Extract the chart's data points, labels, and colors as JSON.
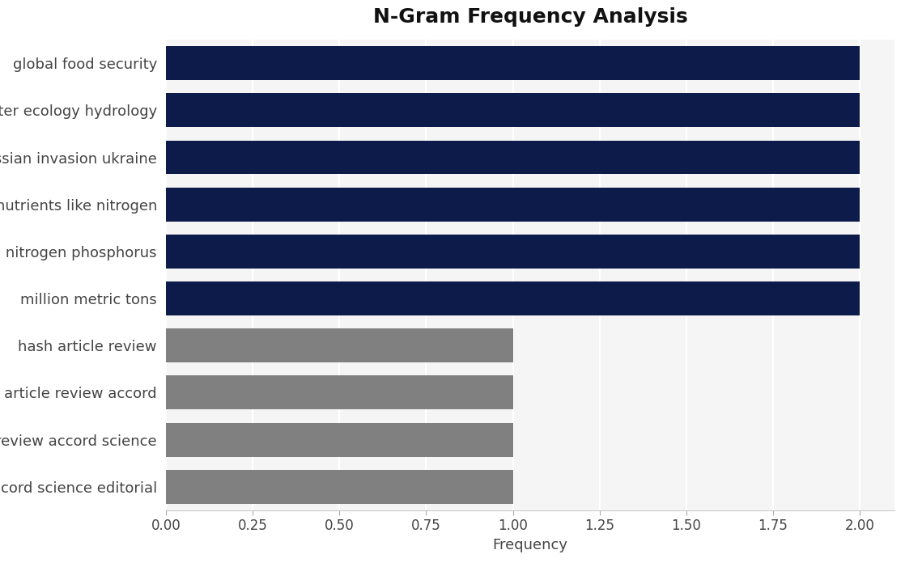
{
  "title": "N-Gram Frequency Analysis",
  "categories": [
    "accord science editorial",
    "review accord science",
    "article review accord",
    "hash article review",
    "million metric tons",
    "like nitrogen phosphorus",
    "nutrients like nitrogen",
    "russian invasion ukraine",
    "center ecology hydrology",
    "global food security"
  ],
  "values": [
    1,
    1,
    1,
    1,
    2,
    2,
    2,
    2,
    2,
    2
  ],
  "bar_colors": [
    "#808080",
    "#808080",
    "#808080",
    "#808080",
    "#0d1b4b",
    "#0d1b4b",
    "#0d1b4b",
    "#0d1b4b",
    "#0d1b4b",
    "#0d1b4b"
  ],
  "plot_bg_color": "#f5f5f5",
  "fig_bg_color": "#ffffff",
  "xlabel": "Frequency",
  "xlim": [
    0,
    2.1
  ],
  "xticks": [
    0.0,
    0.25,
    0.5,
    0.75,
    1.0,
    1.25,
    1.5,
    1.75,
    2.0
  ],
  "title_fontsize": 18,
  "label_fontsize": 13,
  "tick_fontsize": 12,
  "bar_height": 0.72
}
